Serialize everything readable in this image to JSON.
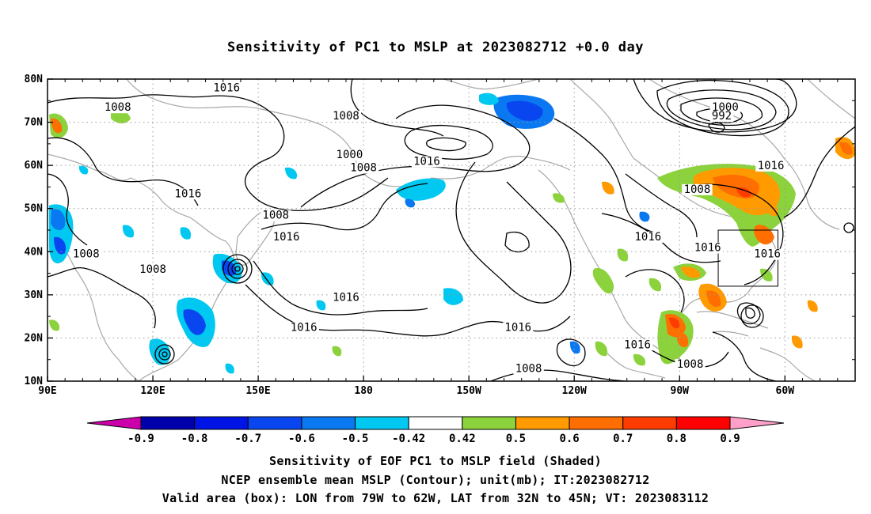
{
  "title": "Sensitivity of PC1 to MSLP at 2023082712 +0.0 day",
  "map": {
    "lat_labels": [
      "80N",
      "70N",
      "60N",
      "50N",
      "40N",
      "30N",
      "20N",
      "10N"
    ],
    "lon_labels": [
      "90E",
      "120E",
      "150E",
      "180",
      "150W",
      "120W",
      "90W",
      "60W"
    ],
    "contour_labels": [
      {
        "text": "1016",
        "lon": 141,
        "lat": 77.5
      },
      {
        "text": "1008",
        "lon": 110,
        "lat": 73
      },
      {
        "text": "1008",
        "lon": 175,
        "lat": 71
      },
      {
        "text": "1000",
        "lon": -77,
        "lat": 73
      },
      {
        "text": "992",
        "lon": -78,
        "lat": 71
      },
      {
        "text": "1000",
        "lon": 176,
        "lat": 62
      },
      {
        "text": "1008",
        "lon": 180,
        "lat": 59
      },
      {
        "text": "1016",
        "lon": -162,
        "lat": 60.5
      },
      {
        "text": "1016",
        "lon": 130,
        "lat": 53
      },
      {
        "text": "1008",
        "lon": -85,
        "lat": 54
      },
      {
        "text": "1016",
        "lon": -64,
        "lat": 59.5
      },
      {
        "text": "1008",
        "lon": 155,
        "lat": 48
      },
      {
        "text": "1016",
        "lon": 158,
        "lat": 43
      },
      {
        "text": "1016",
        "lon": -99,
        "lat": 43
      },
      {
        "text": "1008",
        "lon": 101,
        "lat": 39
      },
      {
        "text": "1016",
        "lon": -82,
        "lat": 40.5
      },
      {
        "text": "1016",
        "lon": -65,
        "lat": 39
      },
      {
        "text": "1008",
        "lon": 120,
        "lat": 35.5
      },
      {
        "text": "1016",
        "lon": 175,
        "lat": 29
      },
      {
        "text": "1016",
        "lon": 163,
        "lat": 22
      },
      {
        "text": "1016",
        "lon": -136,
        "lat": 22
      },
      {
        "text": "1016",
        "lon": -102,
        "lat": 18
      },
      {
        "text": "1008",
        "lon": -133,
        "lat": 12.5
      },
      {
        "text": "1008",
        "lon": -87,
        "lat": 13.5
      }
    ],
    "box_label": "Valid area (box)",
    "valid_box": {
      "lon_min": -79,
      "lon_max": -62,
      "lat_min": 32,
      "lat_max": 45
    }
  },
  "colorbar": {
    "labels": [
      "-0.9",
      "-0.8",
      "-0.7",
      "-0.6",
      "-0.5",
      "-0.42",
      "0.42",
      "0.5",
      "0.6",
      "0.7",
      "0.8",
      "0.9"
    ],
    "colors": [
      "#cc00aa",
      "#0000aa",
      "#0014e6",
      "#0a46f0",
      "#0a78f0",
      "#00c8f0",
      "#ffffff",
      "#8cd23c",
      "#ff9a00",
      "#ff6e00",
      "#ff3c00",
      "#ff0000",
      "#ffa0c8"
    ]
  },
  "captions": {
    "line1": "Sensitivity of EOF PC1 to MSLP field (Shaded)",
    "line2": "NCEP ensemble mean MSLP (Contour); unit(mb); IT:2023082712",
    "line3": "Valid area (box): LON from 79W to 62W, LAT from 32N to 45N; VT: 2023083112"
  }
}
